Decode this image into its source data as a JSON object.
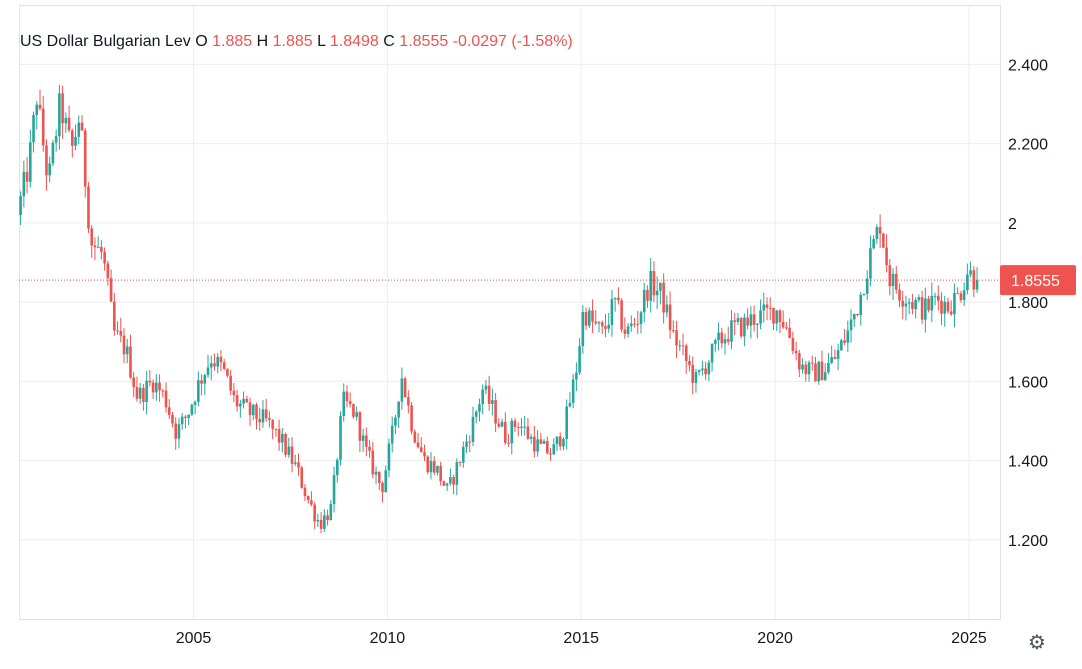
{
  "legend": {
    "symbol": "US Dollar Bulgarian Lev",
    "o_label": "O",
    "o_value": "1.885",
    "h_label": "H",
    "h_value": "1.885",
    "l_label": "L",
    "l_value": "1.8498",
    "c_label": "C",
    "c_value": "1.8555",
    "change": "-0.0297 (-1.58%)"
  },
  "last_price_label": "1.8555",
  "settings_icon": "gear-icon",
  "colors": {
    "up": "#26a69a",
    "down": "#ef5350",
    "grid": "#eeeeee",
    "text": "#131722"
  },
  "chart_data": {
    "type": "candlestick",
    "x_axis": {
      "ticks": [
        "2005",
        "2010",
        "2015",
        "2020",
        "2025"
      ],
      "range": [
        2000.5,
        2025.8
      ]
    },
    "y_axis": {
      "ticks": [
        "1.200",
        "1.400",
        "1.600",
        "1.800",
        "2",
        "2.200",
        "2.400"
      ],
      "tick_values": [
        1.2,
        1.4,
        1.6,
        1.8,
        2.0,
        2.2,
        2.4
      ],
      "range": [
        1.0,
        2.55
      ]
    },
    "last_price": 1.8555,
    "grid": true,
    "path_points": [
      [
        2000.5,
        2.02
      ],
      [
        2000.8,
        2.15
      ],
      [
        2001.0,
        2.32
      ],
      [
        2001.3,
        2.1
      ],
      [
        2001.6,
        2.3
      ],
      [
        2001.9,
        2.18
      ],
      [
        2002.1,
        2.27
      ],
      [
        2002.4,
        1.95
      ],
      [
        2002.7,
        1.92
      ],
      [
        2003.0,
        1.72
      ],
      [
        2003.3,
        1.68
      ],
      [
        2003.6,
        1.56
      ],
      [
        2004.0,
        1.6
      ],
      [
        2004.3,
        1.56
      ],
      [
        2004.6,
        1.47
      ],
      [
        2004.9,
        1.52
      ],
      [
        2005.2,
        1.6
      ],
      [
        2005.5,
        1.66
      ],
      [
        2005.8,
        1.63
      ],
      [
        2006.1,
        1.55
      ],
      [
        2006.5,
        1.52
      ],
      [
        2006.9,
        1.5
      ],
      [
        2007.3,
        1.45
      ],
      [
        2007.7,
        1.38
      ],
      [
        2008.0,
        1.3
      ],
      [
        2008.3,
        1.24
      ],
      [
        2008.6,
        1.28
      ],
      [
        2008.9,
        1.55
      ],
      [
        2009.2,
        1.52
      ],
      [
        2009.5,
        1.42
      ],
      [
        2009.9,
        1.33
      ],
      [
        2010.2,
        1.48
      ],
      [
        2010.4,
        1.62
      ],
      [
        2010.7,
        1.48
      ],
      [
        2011.0,
        1.4
      ],
      [
        2011.3,
        1.38
      ],
      [
        2011.6,
        1.32
      ],
      [
        2011.9,
        1.4
      ],
      [
        2012.2,
        1.48
      ],
      [
        2012.5,
        1.58
      ],
      [
        2012.8,
        1.52
      ],
      [
        2013.1,
        1.46
      ],
      [
        2013.4,
        1.5
      ],
      [
        2013.7,
        1.46
      ],
      [
        2014.0,
        1.43
      ],
      [
        2014.3,
        1.42
      ],
      [
        2014.6,
        1.48
      ],
      [
        2014.9,
        1.62
      ],
      [
        2015.1,
        1.78
      ],
      [
        2015.3,
        1.75
      ],
      [
        2015.6,
        1.72
      ],
      [
        2015.9,
        1.8
      ],
      [
        2016.2,
        1.72
      ],
      [
        2016.5,
        1.76
      ],
      [
        2016.8,
        1.85
      ],
      [
        2017.1,
        1.82
      ],
      [
        2017.4,
        1.72
      ],
      [
        2017.7,
        1.66
      ],
      [
        2018.0,
        1.6
      ],
      [
        2018.3,
        1.65
      ],
      [
        2018.6,
        1.7
      ],
      [
        2018.9,
        1.73
      ],
      [
        2019.2,
        1.74
      ],
      [
        2019.5,
        1.76
      ],
      [
        2019.8,
        1.77
      ],
      [
        2020.1,
        1.78
      ],
      [
        2020.4,
        1.72
      ],
      [
        2020.7,
        1.64
      ],
      [
        2021.0,
        1.62
      ],
      [
        2021.3,
        1.63
      ],
      [
        2021.6,
        1.66
      ],
      [
        2021.9,
        1.72
      ],
      [
        2022.2,
        1.8
      ],
      [
        2022.5,
        1.92
      ],
      [
        2022.75,
        2.0
      ],
      [
        2023.0,
        1.86
      ],
      [
        2023.3,
        1.82
      ],
      [
        2023.6,
        1.8
      ],
      [
        2023.9,
        1.78
      ],
      [
        2024.2,
        1.81
      ],
      [
        2024.5,
        1.79
      ],
      [
        2024.8,
        1.82
      ],
      [
        2025.0,
        1.88
      ],
      [
        2025.2,
        1.8555
      ]
    ]
  }
}
